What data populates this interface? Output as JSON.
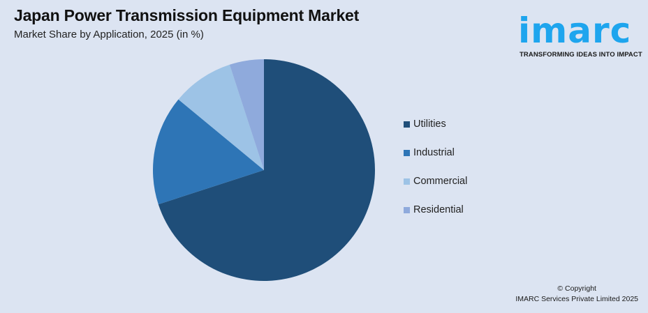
{
  "header": {
    "title": "Japan Power Transmission Equipment Market",
    "subtitle": "Market Share by Application, 2025 (in %)"
  },
  "logo": {
    "wordmark": "imarc",
    "tagline": "TRANSFORMING IDEAS INTO IMPACT",
    "color": "#1ea5ee"
  },
  "chart_data": {
    "type": "pie",
    "title": "Japan Power Transmission Equipment Market",
    "subtitle": "Market Share by Application, 2025 (in %)",
    "categories": [
      "Utilities",
      "Industrial",
      "Commercial",
      "Residential"
    ],
    "values": [
      70,
      16,
      9,
      5
    ],
    "colors": [
      "#1f4e79",
      "#2e75b6",
      "#9dc3e6",
      "#8faadc"
    ],
    "start_angle_deg": 0,
    "direction": "clockwise from 12 o'clock (Utilities first)",
    "legend_position": "right",
    "data_labels": false
  },
  "legend": {
    "items": [
      {
        "label": "Utilities",
        "color": "#1f4e79"
      },
      {
        "label": "Industrial",
        "color": "#2e75b6"
      },
      {
        "label": "Commercial",
        "color": "#9dc3e6"
      },
      {
        "label": "Residential",
        "color": "#8faadc"
      }
    ]
  },
  "footer": {
    "copyright_line1": "© Copyright",
    "copyright_line2": "IMARC Services Private Limited 2025"
  }
}
